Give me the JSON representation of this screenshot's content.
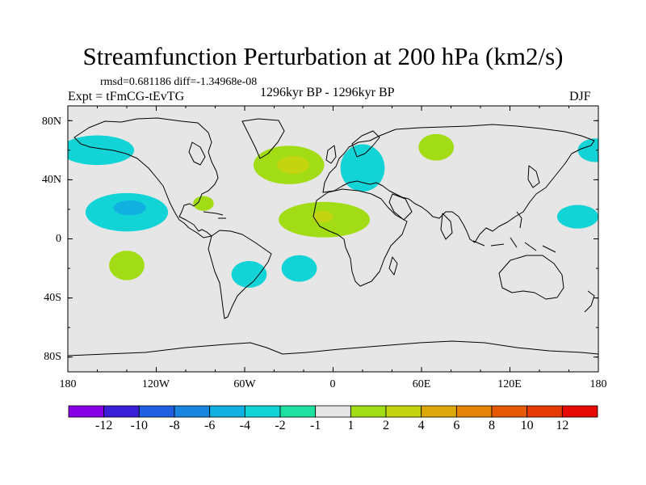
{
  "title": "Streamfunction Perturbation at 200 hPa (km2/s)",
  "stats": {
    "rmsd_label": "rmsd=",
    "rmsd": "0.681186",
    "diff_label": "diff=",
    "diff": "-1.34968e-08"
  },
  "experiment": "Expt = tFmCG-tEvTG",
  "period": "1296kyr BP - 1296kyr BP",
  "season": "DJF",
  "lat_labels": [
    "80N",
    "40N",
    "0",
    "40S",
    "80S"
  ],
  "lon_labels": [
    "180",
    "120W",
    "60W",
    "0",
    "60E",
    "120E",
    "180"
  ],
  "map_extent": {
    "lon": [
      -180,
      180
    ],
    "lat": [
      -90,
      90
    ]
  },
  "colorbar": {
    "labels": [
      "-12",
      "-10",
      "-8",
      "-6",
      "-4",
      "-2",
      "-1",
      "1",
      "2",
      "4",
      "6",
      "8",
      "10",
      "12"
    ],
    "colors": [
      "#8a00e6",
      "#3a1fd6",
      "#1f5fe0",
      "#1886e0",
      "#10b0e0",
      "#12d4d6",
      "#1ee0a0",
      "#e6e6e6",
      "#a2dc14",
      "#c4d40e",
      "#dca80a",
      "#e68408",
      "#e65a06",
      "#e63a06",
      "#e60a06"
    ]
  },
  "map_colors": {
    "land_sea_fill": "#e6e6e6",
    "coastline": "#000000"
  },
  "anomalies": [
    {
      "label": "north-pacific-negative",
      "lon": -160,
      "lat": 60,
      "rx": 25,
      "ry": 10,
      "level": "-2"
    },
    {
      "label": "north-atlantic-positive",
      "lon": -30,
      "lat": 50,
      "rx": 24,
      "ry": 13,
      "level": "1"
    },
    {
      "label": "north-atlantic-core",
      "lon": -27,
      "lat": 50,
      "rx": 11,
      "ry": 6,
      "level": "2"
    },
    {
      "label": "europe-negative",
      "lon": 20,
      "lat": 48,
      "rx": 15,
      "ry": 16,
      "level": "-2"
    },
    {
      "label": "siberia-positive",
      "lon": 70,
      "lat": 62,
      "rx": 12,
      "ry": 9,
      "level": "1"
    },
    {
      "label": "east-pacific-negative",
      "lon": 166,
      "lat": 15,
      "rx": 14,
      "ry": 8,
      "level": "-2"
    },
    {
      "label": "arctic-pacific-negative",
      "lon": 178,
      "lat": 60,
      "rx": 12,
      "ry": 8,
      "level": "-2"
    },
    {
      "label": "central-pacific-negative",
      "lon": -140,
      "lat": 18,
      "rx": 28,
      "ry": 13,
      "level": "-2"
    },
    {
      "label": "central-pacific-core",
      "lon": -138,
      "lat": 21,
      "rx": 11,
      "ry": 5,
      "level": "-4"
    },
    {
      "label": "gulf-positive",
      "lon": -88,
      "lat": 24,
      "rx": 7,
      "ry": 5,
      "level": "1"
    },
    {
      "label": "africa-positive",
      "lon": -6,
      "lat": 13,
      "rx": 31,
      "ry": 12,
      "level": "1"
    },
    {
      "label": "africa-core",
      "lon": -7,
      "lat": 15,
      "rx": 7,
      "ry": 4,
      "level": "2"
    },
    {
      "label": "south-pacific-positive",
      "lon": -140,
      "lat": -18,
      "rx": 12,
      "ry": 10,
      "level": "1"
    },
    {
      "label": "south-america-negative",
      "lon": -57,
      "lat": -24,
      "rx": 12,
      "ry": 9,
      "level": "-2"
    },
    {
      "label": "south-atlantic-negative",
      "lon": -23,
      "lat": -20,
      "rx": 12,
      "ry": 9,
      "level": "-2"
    }
  ]
}
